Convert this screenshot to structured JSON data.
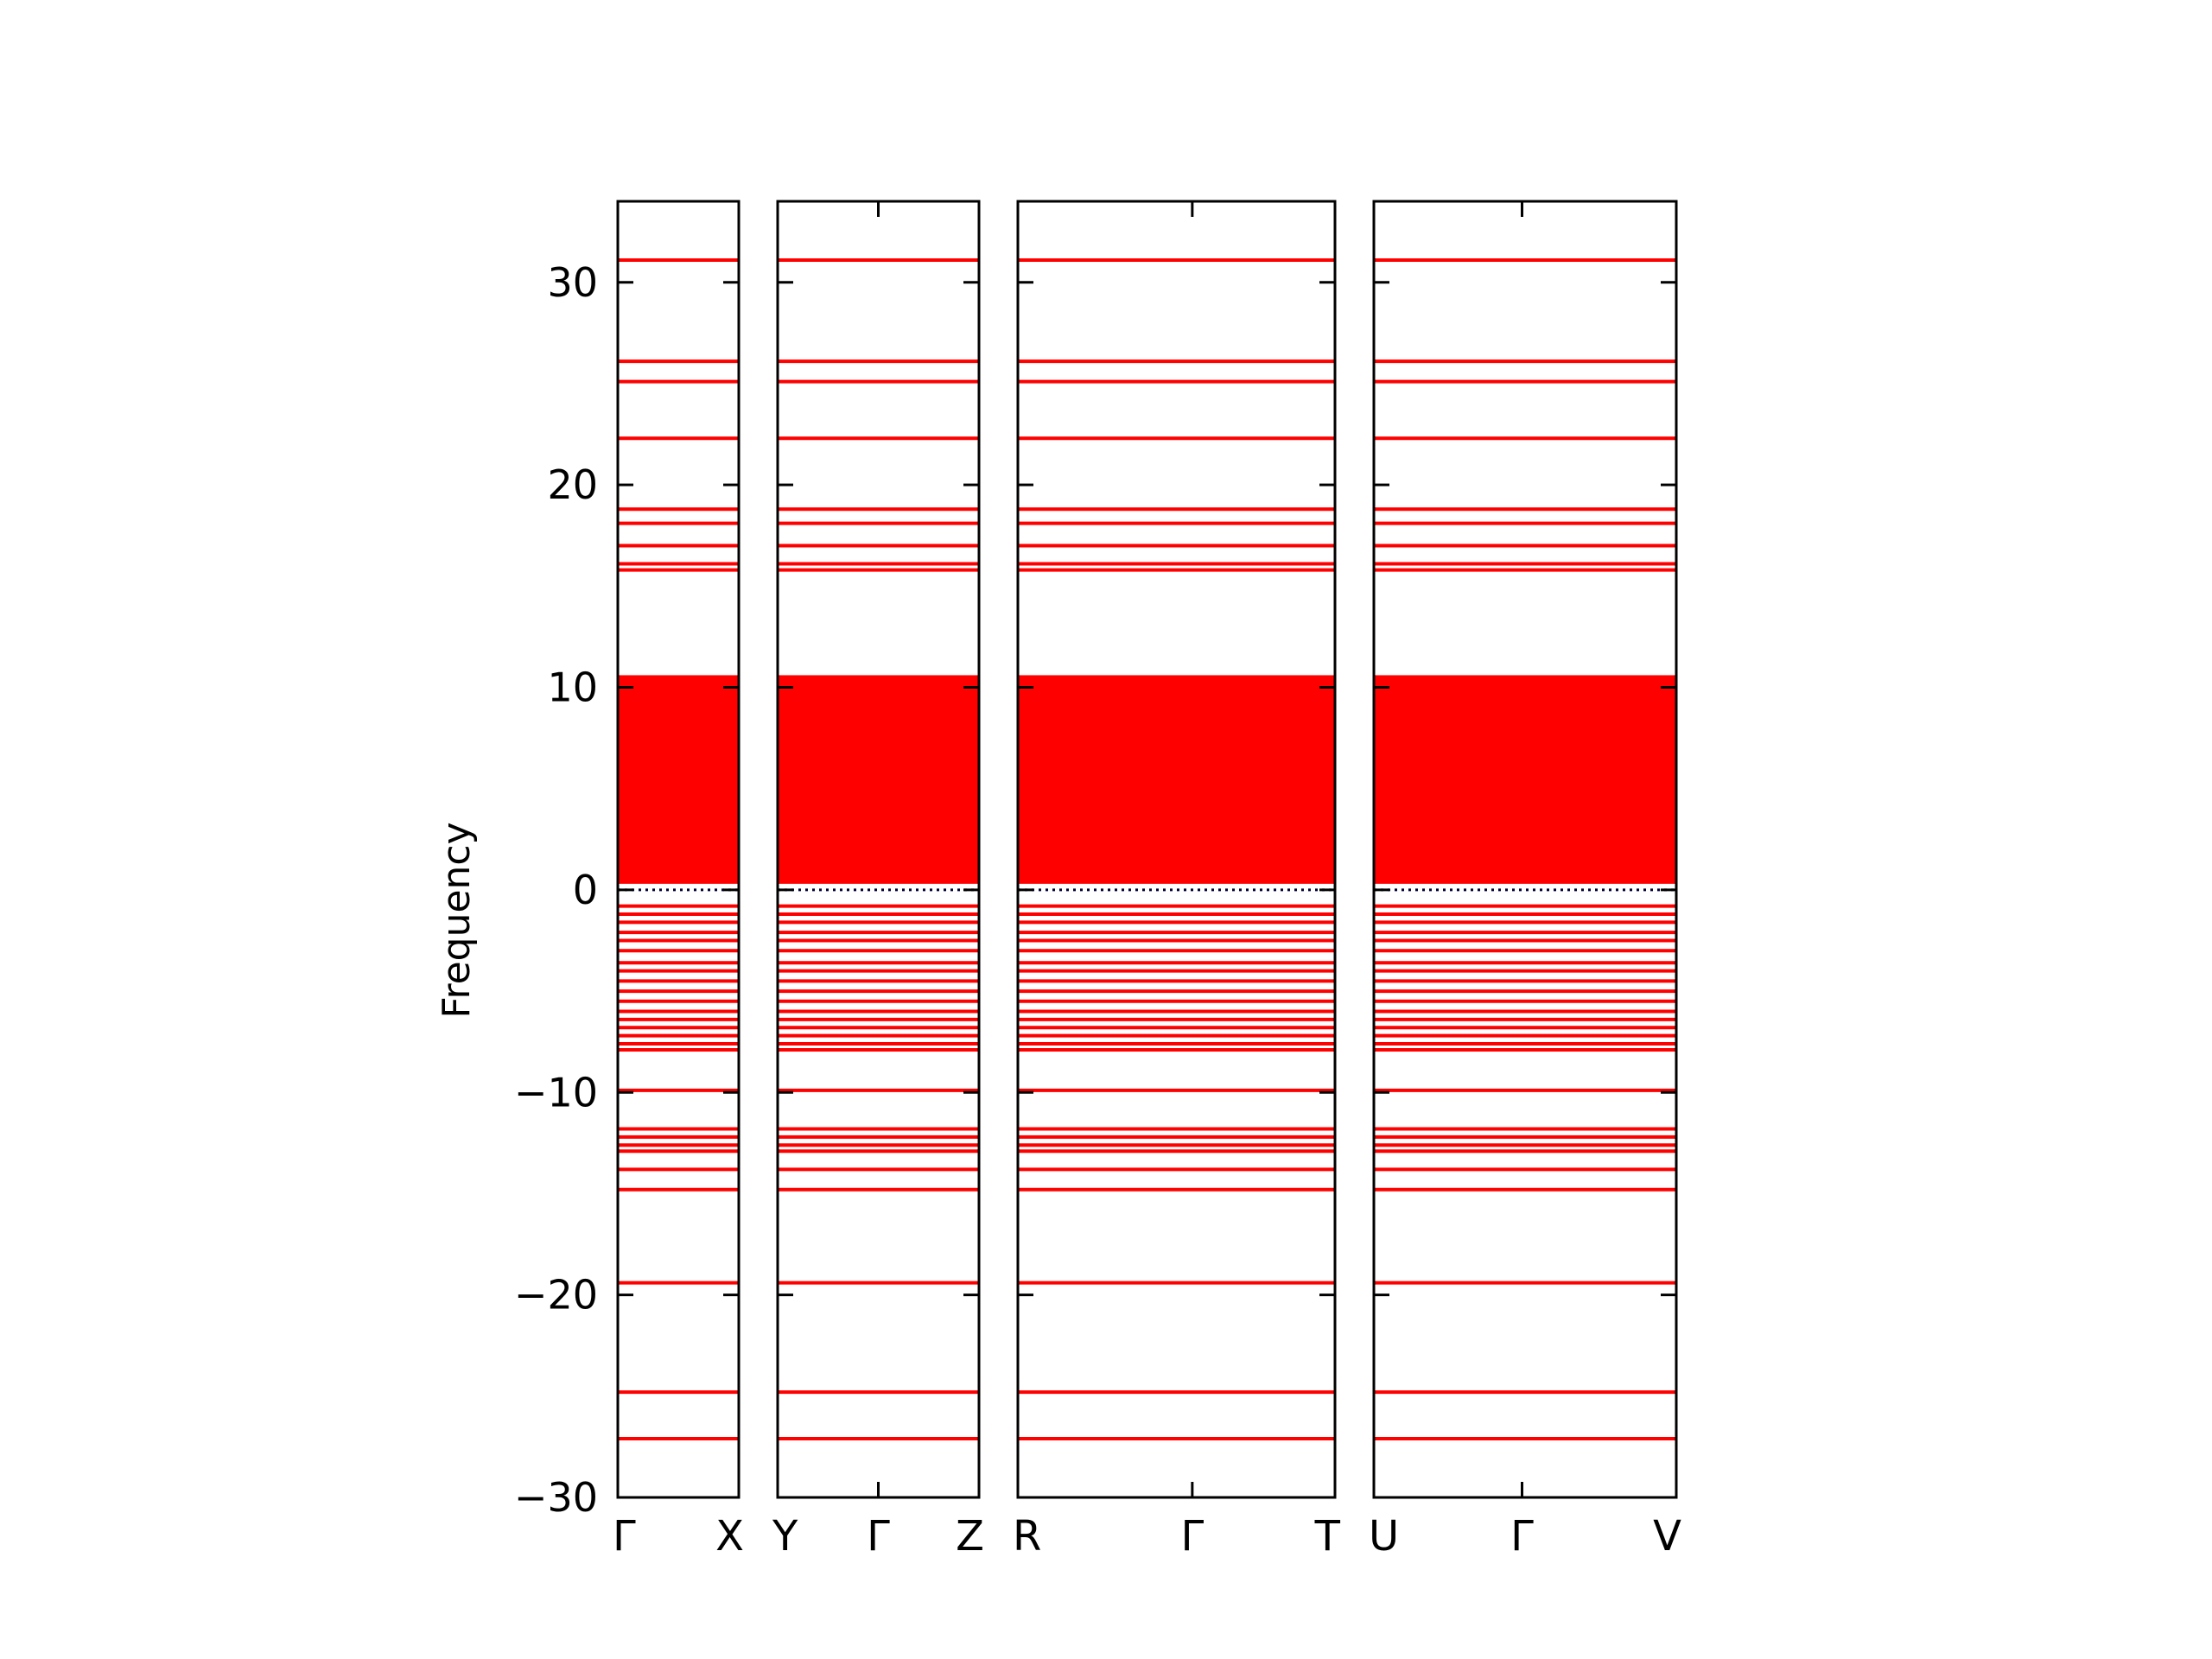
{
  "chart_data": {
    "type": "line",
    "ylabel": "Frequency",
    "ylim": [
      -30,
      34
    ],
    "yticks": [
      -30,
      -20,
      -10,
      0,
      10,
      20,
      30
    ],
    "line_color": "#ff0000",
    "zero_line_color": "#000033",
    "panels": [
      {
        "x_labels": [
          "Γ",
          "X"
        ],
        "tick_fractions": [
          0,
          1
        ]
      },
      {
        "x_labels": [
          "Y",
          "Γ",
          "Z"
        ],
        "tick_fractions": [
          0,
          0.5,
          1
        ]
      },
      {
        "x_labels": [
          "R",
          "Γ",
          "T"
        ],
        "tick_fractions": [
          0,
          0.55,
          1
        ]
      },
      {
        "x_labels": [
          "U",
          "Γ",
          "V"
        ],
        "tick_fractions": [
          0,
          0.49,
          1
        ]
      }
    ],
    "dense_band": [
      0.3,
      10.6
    ],
    "flat_bands": [
      31.1,
      26.1,
      25.1,
      22.3,
      18.8,
      18.1,
      17.0,
      16.1,
      15.8,
      -0.8,
      -1.2,
      -1.6,
      -2.1,
      -2.5,
      -3.0,
      -3.6,
      -4.0,
      -4.5,
      -5.0,
      -5.5,
      -6.0,
      -6.4,
      -6.8,
      -7.2,
      -7.6,
      -7.9,
      -9.9,
      -11.8,
      -12.2,
      -12.6,
      -12.9,
      -13.8,
      -14.8,
      -19.4,
      -24.8,
      -27.1
    ]
  }
}
